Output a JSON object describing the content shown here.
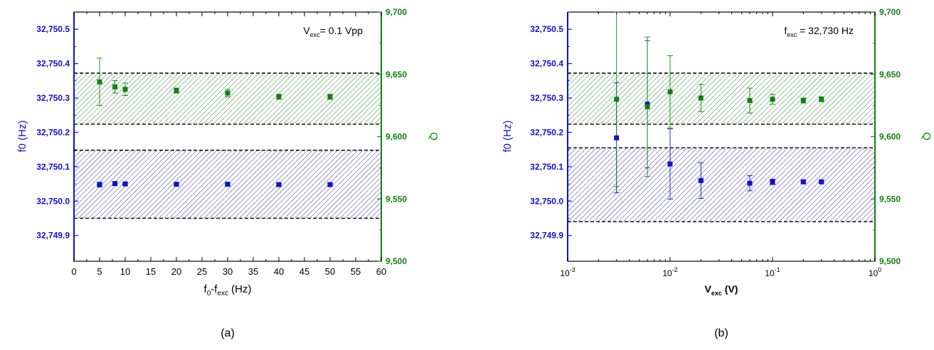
{
  "colors": {
    "blue": "#1010d0",
    "green": "#108010",
    "blue_fill": "#4040a8",
    "green_fill": "#3f8f3f",
    "band_edge": "#000000"
  },
  "chart_data": [
    {
      "type": "scatter",
      "panel_label": "(a)",
      "annotation": {
        "prefix": "V",
        "sub": "exc",
        "rest": "= 0.1 Vpp"
      },
      "xlabel": {
        "main": "f",
        "sub1": "0",
        "mid": "-f",
        "sub2": "exc",
        "tail": " (Hz)"
      },
      "ylabel_left": "f0 (Hz)",
      "ylabel_right": "Q",
      "xscale": "linear",
      "xlim": [
        0,
        60
      ],
      "xticks": [
        0,
        5,
        10,
        15,
        20,
        25,
        30,
        35,
        40,
        45,
        50,
        55,
        60
      ],
      "xtick_labels": [
        "0",
        "5",
        "10",
        "15",
        "20",
        "25",
        "30",
        "35",
        "40",
        "45",
        "50",
        "55",
        "60"
      ],
      "ylim_left": [
        32749.825,
        32750.55
      ],
      "yticks_left": [
        32749.9,
        32750.0,
        32750.1,
        32750.2,
        32750.3,
        32750.4,
        32750.5
      ],
      "ytick_labels_left": [
        "32,749.9",
        "32,750.0",
        "32,750.1",
        "32,750.2",
        "32,750.3",
        "32,750.4",
        "32,750.5"
      ],
      "ylim_right": [
        9500,
        9700
      ],
      "yticks_right": [
        9500,
        9550,
        9600,
        9650,
        9700
      ],
      "ytick_labels_right": [
        "9,500",
        "9,550",
        "9,600",
        "9,650",
        "9,700"
      ],
      "bands": [
        {
          "axis": "left",
          "range": [
            32749.95,
            32750.148
          ],
          "color": "blue"
        },
        {
          "axis": "right",
          "range": [
            9610,
            9651
          ],
          "color": "green"
        }
      ],
      "series": [
        {
          "axis": "left",
          "color": "blue",
          "x": [
            5,
            8,
            10,
            20,
            30,
            40,
            50
          ],
          "y": [
            32750.048,
            32750.051,
            32750.05,
            32750.049,
            32750.049,
            32750.048,
            32750.048
          ],
          "err": [
            0.007,
            0.006,
            0.004,
            0.003,
            0.003,
            0.003,
            0.003
          ]
        },
        {
          "axis": "right",
          "color": "green",
          "x": [
            5,
            8,
            10,
            20,
            30,
            40,
            50
          ],
          "y": [
            9644,
            9640,
            9638,
            9637,
            9635,
            9632,
            9632
          ],
          "err": [
            19,
            5,
            5,
            2,
            3,
            2,
            2
          ]
        }
      ]
    },
    {
      "type": "scatter",
      "panel_label": "(b)",
      "annotation": {
        "prefix": "f",
        "sub": "exc",
        "rest": " = 32,730 Hz"
      },
      "xlabel": {
        "main": "V",
        "sub1": "exc",
        "mid": "",
        "sub2": "",
        "tail": " (V)"
      },
      "ylabel_left": "f0 (Hz)",
      "ylabel_right": "Q",
      "xscale": "log",
      "xlim": [
        0.001,
        1
      ],
      "xticks": [
        0.001,
        0.01,
        0.1,
        1
      ],
      "xtick_labels": [
        [
          "10",
          "-3"
        ],
        [
          "10",
          "-2"
        ],
        [
          "10",
          "-1"
        ],
        [
          "10",
          "0"
        ]
      ],
      "ylim_left": [
        32749.825,
        32750.55
      ],
      "yticks_left": [
        32749.9,
        32750.0,
        32750.1,
        32750.2,
        32750.3,
        32750.4,
        32750.5
      ],
      "ytick_labels_left": [
        "32,749.9",
        "32,750.0",
        "32,750.1",
        "32,750.2",
        "32,750.3",
        "32,750.4",
        "32,750.5"
      ],
      "ylim_right": [
        9500,
        9700
      ],
      "yticks_right": [
        9500,
        9550,
        9600,
        9650,
        9700
      ],
      "ytick_labels_right": [
        "9,500",
        "9,550",
        "9,600",
        "9,650",
        "9,700"
      ],
      "bands": [
        {
          "axis": "left",
          "range": [
            32749.94,
            32750.155
          ],
          "color": "blue"
        },
        {
          "axis": "right",
          "range": [
            9610,
            9651
          ],
          "color": "green"
        }
      ],
      "series": [
        {
          "axis": "left",
          "color": "blue",
          "x": [
            0.003,
            0.006,
            0.01,
            0.02,
            0.06,
            0.1,
            0.2,
            0.3
          ],
          "y": [
            32750.184,
            32750.282,
            32750.108,
            32750.06,
            32750.052,
            32750.056,
            32750.056,
            32750.056
          ],
          "err": [
            0.16,
            0.185,
            0.102,
            0.052,
            0.022,
            0.008,
            0.004,
            0.004
          ]
        },
        {
          "axis": "right",
          "color": "green",
          "x": [
            0.003,
            0.006,
            0.01,
            0.02,
            0.06,
            0.1,
            0.2,
            0.3
          ],
          "y": [
            9630,
            9624,
            9636,
            9631,
            9629,
            9630,
            9629,
            9630
          ],
          "err": [
            70,
            56,
            29,
            11,
            10,
            4,
            2,
            2
          ]
        }
      ]
    }
  ]
}
